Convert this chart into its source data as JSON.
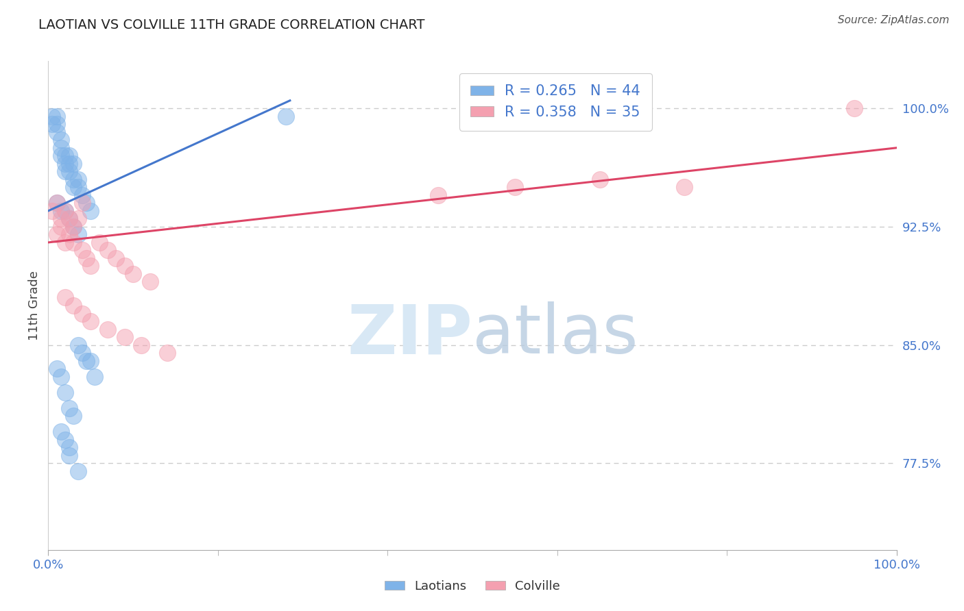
{
  "title": "LAOTIAN VS COLVILLE 11TH GRADE CORRELATION CHART",
  "source": "Source: ZipAtlas.com",
  "ylabel": "11th Grade",
  "xlim": [
    0.0,
    100.0
  ],
  "ylim": [
    72.0,
    103.0
  ],
  "ytick_values": [
    100.0,
    92.5,
    85.0,
    77.5
  ],
  "ytick_labels": [
    "100.0%",
    "92.5%",
    "85.0%",
    "77.5%"
  ],
  "xtick_values": [
    0.0,
    100.0
  ],
  "xtick_labels": [
    "0.0%",
    "100.0%"
  ],
  "xtick_minor": [
    20.0,
    40.0,
    60.0,
    80.0
  ],
  "grid_color": "#cccccc",
  "background_color": "#ffffff",
  "laotian_color": "#7fb3e8",
  "colville_color": "#f4a0b0",
  "laotian_line_color": "#4477cc",
  "colville_line_color": "#dd4466",
  "R_laotian": 0.265,
  "N_laotian": 44,
  "R_colville": 0.358,
  "N_colville": 35,
  "tick_color": "#4477cc",
  "watermark_color": "#d8e8f5",
  "laotian_x": [
    0.5,
    0.5,
    1.0,
    1.0,
    1.0,
    1.5,
    1.5,
    1.5,
    2.0,
    2.0,
    2.0,
    2.5,
    2.5,
    2.5,
    3.0,
    3.0,
    3.0,
    3.5,
    3.5,
    4.0,
    4.5,
    5.0,
    1.0,
    1.5,
    2.0,
    2.5,
    3.0,
    3.5,
    4.0,
    5.0,
    1.0,
    1.5,
    2.0,
    2.5,
    3.0,
    1.5,
    2.0,
    2.5,
    3.5,
    4.5,
    5.5,
    2.5,
    3.5,
    28.0
  ],
  "laotian_y": [
    99.0,
    99.5,
    99.0,
    99.5,
    98.5,
    97.0,
    98.0,
    97.5,
    97.0,
    96.5,
    96.0,
    96.5,
    97.0,
    96.0,
    96.5,
    95.5,
    95.0,
    95.5,
    95.0,
    94.5,
    94.0,
    93.5,
    94.0,
    93.5,
    93.5,
    93.0,
    92.5,
    92.0,
    84.5,
    84.0,
    83.5,
    83.0,
    82.0,
    81.0,
    80.5,
    79.5,
    79.0,
    78.5,
    85.0,
    84.0,
    83.0,
    78.0,
    77.0,
    99.5
  ],
  "colville_x": [
    0.5,
    1.0,
    1.5,
    2.0,
    2.5,
    3.0,
    3.5,
    4.0,
    1.0,
    1.5,
    2.0,
    2.5,
    3.0,
    4.0,
    4.5,
    5.0,
    6.0,
    7.0,
    8.0,
    9.0,
    10.0,
    12.0,
    2.0,
    3.0,
    4.0,
    5.0,
    7.0,
    9.0,
    11.0,
    14.0,
    46.0,
    55.0,
    65.0,
    75.0,
    95.0
  ],
  "colville_y": [
    93.5,
    94.0,
    93.0,
    93.5,
    93.0,
    92.5,
    93.0,
    94.0,
    92.0,
    92.5,
    91.5,
    92.0,
    91.5,
    91.0,
    90.5,
    90.0,
    91.5,
    91.0,
    90.5,
    90.0,
    89.5,
    89.0,
    88.0,
    87.5,
    87.0,
    86.5,
    86.0,
    85.5,
    85.0,
    84.5,
    94.5,
    95.0,
    95.5,
    95.0,
    100.0
  ],
  "blue_line_x": [
    0.0,
    28.5
  ],
  "blue_line_y": [
    93.5,
    100.5
  ],
  "pink_line_x": [
    0.0,
    100.0
  ],
  "pink_line_y": [
    91.5,
    97.5
  ]
}
